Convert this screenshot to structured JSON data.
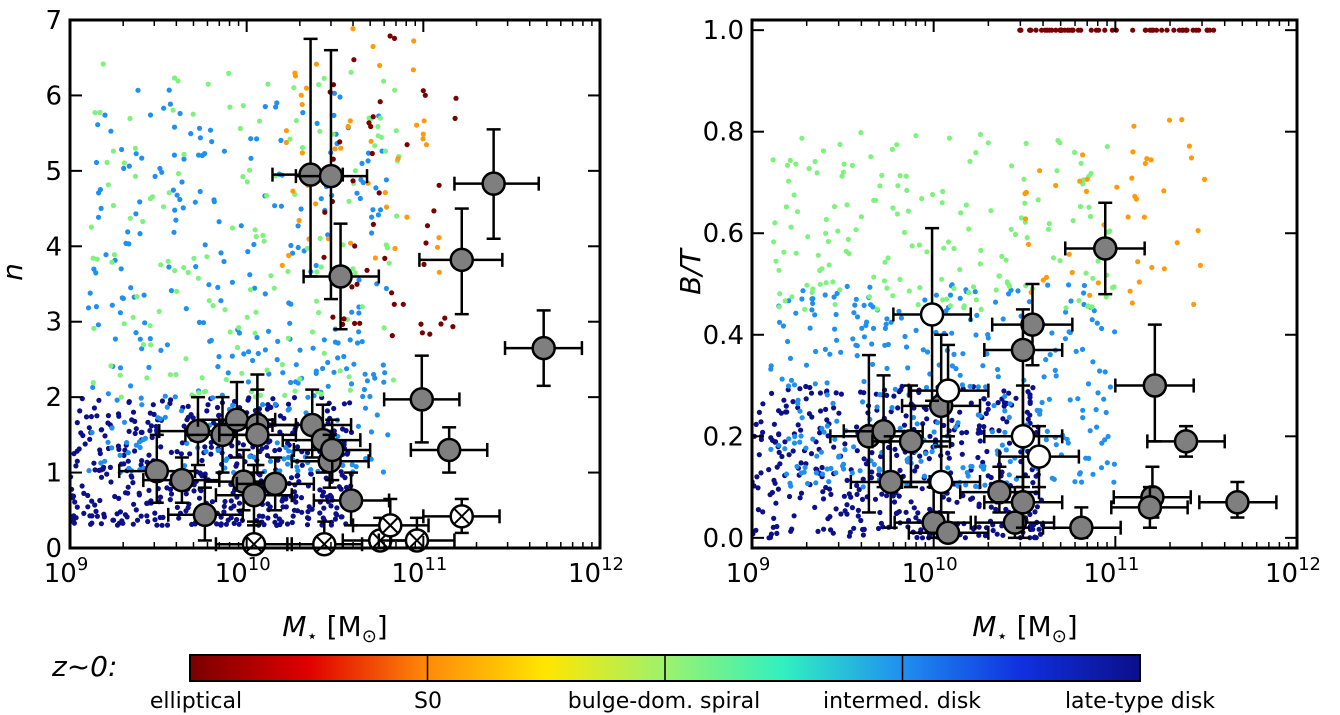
{
  "chart_data": [
    {
      "type": "scatter",
      "panel": "left",
      "title": "",
      "xlabel": "M⋆ [M⊙]",
      "ylabel": "n",
      "xscale": "log",
      "xlim": [
        1000000000.0,
        1000000000000.0
      ],
      "ylim": [
        0,
        7
      ],
      "x_ticks": [
        {
          "value": 1000000000.0,
          "base": "10",
          "exp": "9"
        },
        {
          "value": 10000000000.0,
          "base": "10",
          "exp": "10"
        },
        {
          "value": 100000000000.0,
          "base": "10",
          "exp": "11"
        },
        {
          "value": 1000000000000.0,
          "base": "10",
          "exp": "12"
        }
      ],
      "y_ticks": [
        "0",
        "1",
        "2",
        "3",
        "4",
        "5",
        "6",
        "7"
      ],
      "background_clouds": [
        {
          "type": "elliptical",
          "color": "#7a0000",
          "n": 50,
          "logM": [
            10.4,
            11.2
          ],
          "y": [
            2.8,
            6.8
          ]
        },
        {
          "type": "S0",
          "color": "#ff9a0a",
          "n": 45,
          "logM": [
            10.2,
            11.1
          ],
          "y": [
            3.5,
            6.9
          ]
        },
        {
          "type": "bulge-dom. spiral",
          "color": "#7df27d",
          "n": 150,
          "logM": [
            9.1,
            10.9
          ],
          "y": [
            2.0,
            6.5
          ]
        },
        {
          "type": "intermed. disk",
          "color": "#1f8ff0",
          "n": 320,
          "logM": [
            9.1,
            10.8
          ],
          "y": [
            1.0,
            6.1
          ]
        },
        {
          "type": "late-type disk",
          "color": "#0b0f8a",
          "n": 480,
          "logM": [
            9.0,
            10.6
          ],
          "y": [
            0.3,
            2.0
          ]
        }
      ],
      "points": [
        {
          "x": 23000000000.0,
          "y": 4.95,
          "xerr": [
            14000000000.0,
            35000000000.0
          ],
          "yerr": [
            3.6,
            6.75
          ],
          "style": "filled"
        },
        {
          "x": 30000000000.0,
          "y": 4.93,
          "xerr": [
            19000000000.0,
            48000000000.0
          ],
          "yerr": [
            3.3,
            6.6
          ],
          "style": "filled"
        },
        {
          "x": 34000000000.0,
          "y": 3.6,
          "xerr": [
            21000000000.0,
            56000000000.0
          ],
          "yerr": [
            2.9,
            4.3
          ],
          "style": "filled"
        },
        {
          "x": 250000000000.0,
          "y": 4.83,
          "xerr": [
            150000000000.0,
            450000000000.0
          ],
          "yerr": [
            4.1,
            5.55
          ],
          "style": "filled"
        },
        {
          "x": 165000000000.0,
          "y": 3.82,
          "xerr": [
            95000000000.0,
            280000000000.0
          ],
          "yerr": [
            3.1,
            4.5
          ],
          "style": "filled"
        },
        {
          "x": 480000000000.0,
          "y": 2.65,
          "xerr": [
            290000000000.0,
            790000000000.0
          ],
          "yerr": [
            2.15,
            3.15
          ],
          "style": "filled"
        },
        {
          "x": 98000000000.0,
          "y": 1.97,
          "xerr": [
            60000000000.0,
            160000000000.0
          ],
          "yerr": [
            1.4,
            2.55
          ],
          "style": "filled"
        },
        {
          "x": 140000000000.0,
          "y": 1.3,
          "xerr": [
            85000000000.0,
            230000000000.0
          ],
          "yerr": [
            1.0,
            1.6
          ],
          "style": "filled"
        },
        {
          "x": 3100000000.0,
          "y": 1.02,
          "xerr": [
            1900000000.0,
            5100000000.0
          ],
          "yerr": [
            0.6,
            1.5
          ],
          "style": "filled"
        },
        {
          "x": 4300000000.0,
          "y": 0.9,
          "xerr": [
            2600000000.0,
            7000000000.0
          ],
          "yerr": [
            0.6,
            1.2
          ],
          "style": "filled"
        },
        {
          "x": 5300000000.0,
          "y": 1.55,
          "xerr": [
            3200000000.0,
            8600000000.0
          ],
          "yerr": [
            1.1,
            2.0
          ],
          "style": "filled"
        },
        {
          "x": 5800000000.0,
          "y": 0.44,
          "xerr": [
            3600000000.0,
            9500000000.0
          ],
          "yerr": [
            0.1,
            0.8
          ],
          "style": "filled"
        },
        {
          "x": 7300000000.0,
          "y": 1.5,
          "xerr": [
            4500000000.0,
            12000000000.0
          ],
          "yerr": [
            1.0,
            2.0
          ],
          "style": "filled"
        },
        {
          "x": 8800000000.0,
          "y": 1.7,
          "xerr": [
            5300000000.0,
            14500000000.0
          ],
          "yerr": [
            1.2,
            2.2
          ],
          "style": "filled"
        },
        {
          "x": 9600000000.0,
          "y": 0.88,
          "xerr": [
            5800000000.0,
            16000000000.0
          ],
          "yerr": [
            0.5,
            1.3
          ],
          "style": "filled"
        },
        {
          "x": 11000000000.0,
          "y": 0.7,
          "xerr": [
            6700000000.0,
            18000000000.0
          ],
          "yerr": [
            0.3,
            1.1
          ],
          "style": "filled"
        },
        {
          "x": 11500000000.0,
          "y": 1.63,
          "xerr": [
            7000000000.0,
            19000000000.0
          ],
          "yerr": [
            1.1,
            2.1
          ],
          "style": "filled"
        },
        {
          "x": 11500000000.0,
          "y": 1.5,
          "xerr": [
            7000000000.0,
            19000000000.0
          ],
          "yerr": [
            1.0,
            2.3
          ],
          "style": "filled"
        },
        {
          "x": 14500000000.0,
          "y": 0.85,
          "xerr": [
            8800000000.0,
            24000000000.0
          ],
          "yerr": [
            0.5,
            1.2
          ],
          "style": "filled"
        },
        {
          "x": 23500000000.0,
          "y": 1.63,
          "xerr": [
            14000000000.0,
            39000000000.0
          ],
          "yerr": [
            1.2,
            2.1
          ],
          "style": "filled"
        },
        {
          "x": 27000000000.0,
          "y": 1.43,
          "xerr": [
            16000000000.0,
            44000000000.0
          ],
          "yerr": [
            1.0,
            1.9
          ],
          "style": "filled"
        },
        {
          "x": 29500000000.0,
          "y": 1.15,
          "xerr": [
            18000000000.0,
            49000000000.0
          ],
          "yerr": [
            0.8,
            1.5
          ],
          "style": "filled"
        },
        {
          "x": 30500000000.0,
          "y": 1.3,
          "xerr": [
            18500000000.0,
            50000000000.0
          ],
          "yerr": [
            0.9,
            1.7
          ],
          "style": "filled"
        },
        {
          "x": 39000000000.0,
          "y": 0.63,
          "xerr": [
            24000000000.0,
            64000000000.0
          ],
          "yerr": [
            0.3,
            1.0
          ],
          "style": "filled"
        },
        {
          "x": 11000000000.0,
          "y": 0.05,
          "xerr": [
            6700000000.0,
            18000000000.0
          ],
          "yerr": [
            0.0,
            0.35
          ],
          "style": "crossed"
        },
        {
          "x": 27500000000.0,
          "y": 0.05,
          "xerr": [
            17000000000.0,
            45000000000.0
          ],
          "yerr": [
            0.0,
            0.35
          ],
          "style": "crossed"
        },
        {
          "x": 57000000000.0,
          "y": 0.1,
          "xerr": [
            35000000000.0,
            94000000000.0
          ],
          "yerr": [
            0.0,
            0.4
          ],
          "style": "crossed"
        },
        {
          "x": 65000000000.0,
          "y": 0.3,
          "xerr": [
            40000000000.0,
            107000000000.0
          ],
          "yerr": [
            0.0,
            0.65
          ],
          "style": "crossed"
        },
        {
          "x": 92000000000.0,
          "y": 0.1,
          "xerr": [
            56000000000.0,
            150000000000.0
          ],
          "yerr": [
            0.0,
            0.4
          ],
          "style": "crossed"
        },
        {
          "x": 165000000000.0,
          "y": 0.42,
          "xerr": [
            100000000000.0,
            270000000000.0
          ],
          "yerr": [
            0.2,
            0.65
          ],
          "style": "crossed"
        }
      ]
    },
    {
      "type": "scatter",
      "panel": "right",
      "title": "",
      "xlabel": "M⋆ [M⊙]",
      "ylabel": "B/T",
      "xscale": "log",
      "xlim": [
        1000000000.0,
        1000000000000.0
      ],
      "ylim": [
        -0.02,
        1.02
      ],
      "x_ticks": [
        {
          "value": 1000000000.0,
          "base": "10",
          "exp": "9"
        },
        {
          "value": 10000000000.0,
          "base": "10",
          "exp": "10"
        },
        {
          "value": 100000000000.0,
          "base": "10",
          "exp": "11"
        },
        {
          "value": 1000000000000.0,
          "base": "10",
          "exp": "12"
        }
      ],
      "y_ticks": [
        "0.0",
        "0.2",
        "0.4",
        "0.6",
        "0.8",
        "1.0"
      ],
      "background_clouds": [
        {
          "type": "elliptical",
          "color": "#7a0000",
          "n": 55,
          "logM": [
            10.45,
            11.55
          ],
          "y": [
            1.0,
            1.0
          ]
        },
        {
          "type": "S0",
          "color": "#ff9a0a",
          "n": 45,
          "logM": [
            10.5,
            11.5
          ],
          "y": [
            0.45,
            0.85
          ]
        },
        {
          "type": "bulge-dom. spiral",
          "color": "#7df27d",
          "n": 170,
          "logM": [
            9.1,
            11.0
          ],
          "y": [
            0.45,
            0.8
          ]
        },
        {
          "type": "intermed. disk",
          "color": "#1f8ff0",
          "n": 330,
          "logM": [
            9.1,
            11.0
          ],
          "y": [
            0.1,
            0.5
          ]
        },
        {
          "type": "late-type disk",
          "color": "#0b0f8a",
          "n": 420,
          "logM": [
            9.0,
            10.6
          ],
          "y": [
            0.0,
            0.3
          ]
        }
      ],
      "points": [
        {
          "x": 88000000000.0,
          "y": 0.57,
          "xerr": [
            53000000000.0,
            145000000000.0
          ],
          "yerr": [
            0.48,
            0.66
          ],
          "style": "filled"
        },
        {
          "x": 35000000000.0,
          "y": 0.42,
          "xerr": [
            21000000000.0,
            58000000000.0
          ],
          "yerr": [
            0.34,
            0.5
          ],
          "style": "filled"
        },
        {
          "x": 31000000000.0,
          "y": 0.37,
          "xerr": [
            19000000000.0,
            51000000000.0
          ],
          "yerr": [
            0.0,
            0.45
          ],
          "style": "filled"
        },
        {
          "x": 165000000000.0,
          "y": 0.3,
          "xerr": [
            100000000000.0,
            270000000000.0
          ],
          "yerr": [
            0.19,
            0.42
          ],
          "style": "filled"
        },
        {
          "x": 245000000000.0,
          "y": 0.19,
          "xerr": [
            150000000000.0,
            400000000000.0
          ],
          "yerr": [
            0.16,
            0.22
          ],
          "style": "filled"
        },
        {
          "x": 11000000000.0,
          "y": 0.26,
          "xerr": [
            6700000000.0,
            18000000000.0
          ],
          "yerr": [
            0.1,
            0.4
          ],
          "style": "filled"
        },
        {
          "x": 4400000000.0,
          "y": 0.2,
          "xerr": [
            2700000000.0,
            7200000000.0
          ],
          "yerr": [
            0.05,
            0.36
          ],
          "style": "filled"
        },
        {
          "x": 5300000000.0,
          "y": 0.21,
          "xerr": [
            3200000000.0,
            8700000000.0
          ],
          "yerr": [
            0.1,
            0.32
          ],
          "style": "filled"
        },
        {
          "x": 7500000000.0,
          "y": 0.19,
          "xerr": [
            4600000000.0,
            12300000000.0
          ],
          "yerr": [
            0.1,
            0.3
          ],
          "style": "filled"
        },
        {
          "x": 5800000000.0,
          "y": 0.11,
          "xerr": [
            3500000000.0,
            9500000000.0
          ],
          "yerr": [
            0.02,
            0.2
          ],
          "style": "filled"
        },
        {
          "x": 10000000000.0,
          "y": 0.03,
          "xerr": [
            6100000000.0,
            16000000000.0
          ],
          "yerr": [
            0.0,
            0.1
          ],
          "style": "filled"
        },
        {
          "x": 12000000000.0,
          "y": 0.01,
          "xerr": [
            7300000000.0,
            20000000000.0
          ],
          "yerr": [
            0.0,
            0.05
          ],
          "style": "filled"
        },
        {
          "x": 23000000000.0,
          "y": 0.09,
          "xerr": [
            14000000000.0,
            38000000000.0
          ],
          "yerr": [
            0.05,
            0.14
          ],
          "style": "filled"
        },
        {
          "x": 28000000000.0,
          "y": 0.03,
          "xerr": [
            17000000000.0,
            46000000000.0
          ],
          "yerr": [
            0.0,
            0.1
          ],
          "style": "filled"
        },
        {
          "x": 31000000000.0,
          "y": 0.07,
          "xerr": [
            19000000000.0,
            51000000000.0
          ],
          "yerr": [
            0.02,
            0.12
          ],
          "style": "filled"
        },
        {
          "x": 65000000000.0,
          "y": 0.02,
          "xerr": [
            40000000000.0,
            107000000000.0
          ],
          "yerr": [
            0.0,
            0.06
          ],
          "style": "filled"
        },
        {
          "x": 160000000000.0,
          "y": 0.08,
          "xerr": [
            98000000000.0,
            260000000000.0
          ],
          "yerr": [
            0.04,
            0.14
          ],
          "style": "filled"
        },
        {
          "x": 155000000000.0,
          "y": 0.06,
          "xerr": [
            95000000000.0,
            250000000000.0
          ],
          "yerr": [
            0.02,
            0.1
          ],
          "style": "filled"
        },
        {
          "x": 470000000000.0,
          "y": 0.07,
          "xerr": [
            290000000000.0,
            770000000000.0
          ],
          "yerr": [
            0.04,
            0.11
          ],
          "style": "filled"
        },
        {
          "x": 9800000000.0,
          "y": 0.44,
          "xerr": [
            6000000000.0,
            16000000000.0
          ],
          "yerr": [
            0.27,
            0.61
          ],
          "style": "open"
        },
        {
          "x": 12000000000.0,
          "y": 0.29,
          "xerr": [
            7300000000.0,
            20000000000.0
          ],
          "yerr": [
            0.2,
            0.38
          ],
          "style": "open"
        },
        {
          "x": 31000000000.0,
          "y": 0.2,
          "xerr": [
            19000000000.0,
            51000000000.0
          ],
          "yerr": [
            0.1,
            0.3
          ],
          "style": "open"
        },
        {
          "x": 38000000000.0,
          "y": 0.16,
          "xerr": [
            23000000000.0,
            63000000000.0
          ],
          "yerr": [
            0.1,
            0.22
          ],
          "style": "open"
        },
        {
          "x": 11000000000.0,
          "y": 0.11,
          "xerr": [
            6700000000.0,
            18000000000.0
          ],
          "yerr": [
            0.05,
            0.18
          ],
          "style": "open"
        }
      ]
    }
  ],
  "colorbar": {
    "prefix": "z~0:",
    "stops": [
      "#7a0000",
      "#e00000",
      "#ff8a0a",
      "#ffe600",
      "#9df26d",
      "#30f0c0",
      "#1f8ff0",
      "#1030e0",
      "#0b0f8a"
    ],
    "labels": [
      "elliptical",
      "S0",
      "bulge-dom. spiral",
      "intermed. disk",
      "late-type disk"
    ]
  }
}
